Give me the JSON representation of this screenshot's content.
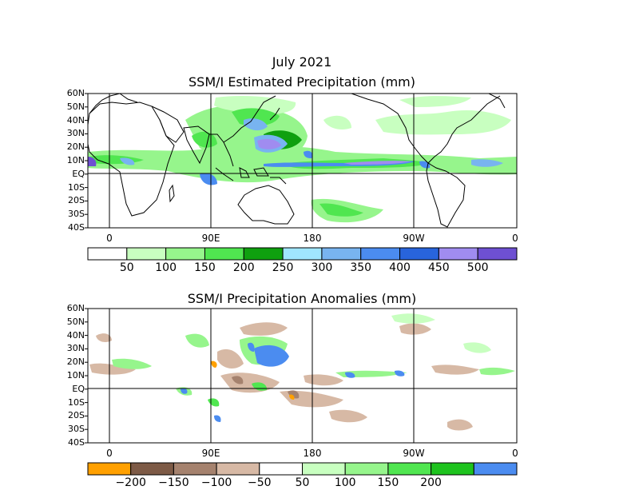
{
  "month_title": "July 2021",
  "panels": {
    "top": {
      "title": "SSM/I Estimated Precipitation (mm)",
      "lat_labels": [
        "60N",
        "50N",
        "40N",
        "30N",
        "20N",
        "10N",
        "EQ",
        "10S",
        "20S",
        "30S",
        "40S"
      ],
      "lon_labels": [
        "0",
        "90E",
        "180",
        "90W",
        "0"
      ],
      "colorbar": {
        "colors": [
          "#ffffff",
          "#c8ffc0",
          "#96f58c",
          "#50e650",
          "#0fa00f",
          "#a0e6ff",
          "#78b4f0",
          "#4b8cf0",
          "#2864dc",
          "#a08cf0",
          "#6e50d2"
        ],
        "labels": [
          "50",
          "100",
          "150",
          "200",
          "250",
          "300",
          "350",
          "400",
          "450",
          "500"
        ]
      }
    },
    "bottom": {
      "title": "SSM/I Precipitation Anomalies (mm)",
      "lat_labels": [
        "60N",
        "50N",
        "40N",
        "30N",
        "20N",
        "10N",
        "EQ",
        "10S",
        "20S",
        "30S",
        "40S"
      ],
      "lon_labels": [
        "0",
        "90E",
        "180",
        "90W",
        "0"
      ],
      "colorbar": {
        "colors": [
          "#ffa000",
          "#7d5a46",
          "#a5826e",
          "#d7b9a5",
          "#ffffff",
          "#c8ffc0",
          "#96f58c",
          "#50e650",
          "#1ec31e",
          "#4b8cf0"
        ],
        "labels": [
          "−200",
          "−150",
          "−100",
          "−50",
          "50",
          "100",
          "150",
          "200"
        ]
      }
    }
  }
}
